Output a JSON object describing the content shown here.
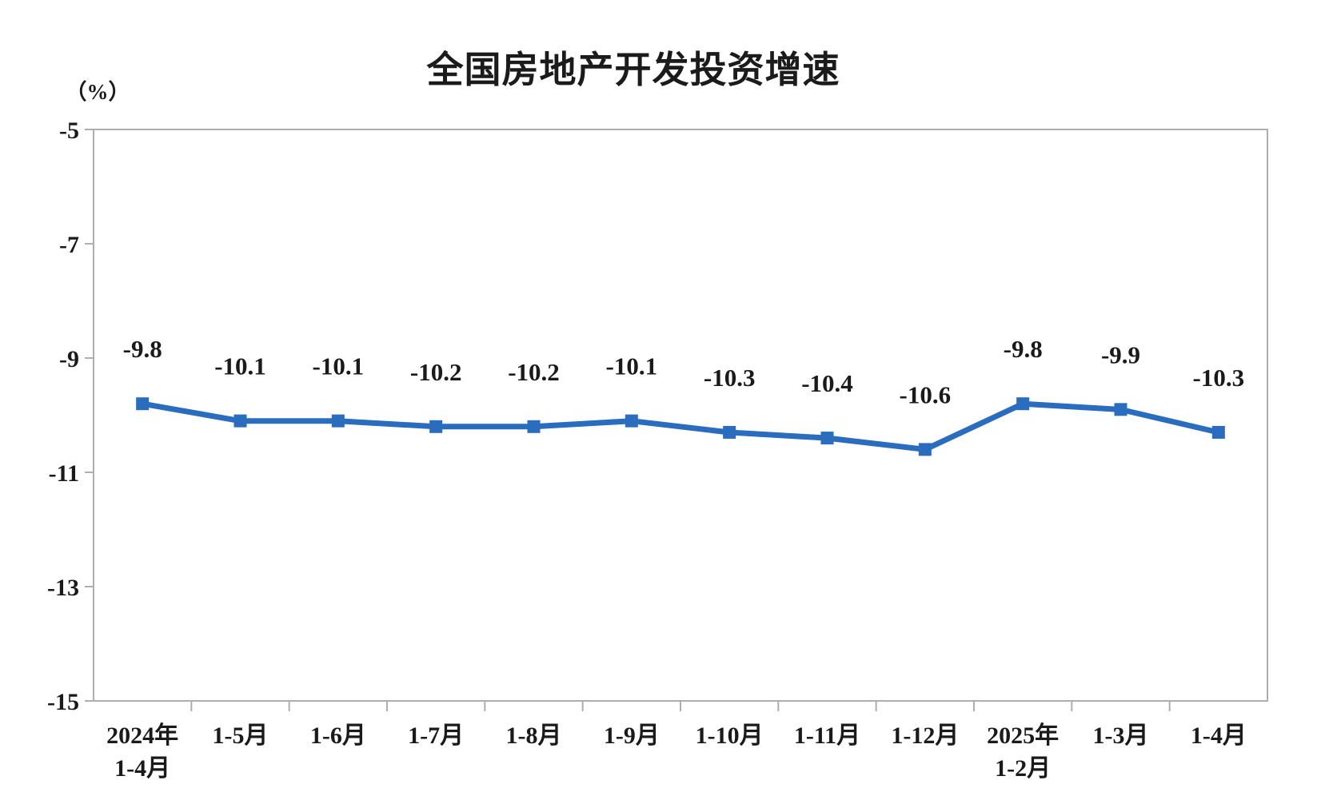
{
  "chart_data": {
    "type": "line",
    "title": "全国房地产开发投资增速",
    "ylabel": "（%）",
    "categories": [
      "2024年\n1-4月",
      "1-5月",
      "1-6月",
      "1-7月",
      "1-8月",
      "1-9月",
      "1-10月",
      "1-11月",
      "1-12月",
      "2025年\n1-2月",
      "1-3月",
      "1-4月"
    ],
    "values": [
      -9.8,
      -10.1,
      -10.1,
      -10.2,
      -10.2,
      -10.1,
      -10.3,
      -10.4,
      -10.6,
      -9.8,
      -9.9,
      -10.3
    ],
    "point_labels": [
      "-9.8",
      "-10.1",
      "-10.1",
      "-10.2",
      "-10.2",
      "-10.1",
      "-10.3",
      "-10.4",
      "-10.6",
      "-9.8",
      "-9.9",
      "-10.3"
    ],
    "y_ticks": [
      -5,
      -7,
      -9,
      -11,
      -13,
      -15
    ],
    "y_tick_labels": [
      "-5",
      "-7",
      "-9",
      "-11",
      "-13",
      "-15"
    ],
    "ylim": [
      -15,
      -5
    ],
    "grid": false,
    "legend": "none",
    "marker": "square",
    "colors": {
      "line": "#2a6cbe",
      "marker": "#2a6cbe",
      "axis": "#aeaeae",
      "text": "#1a1a1a"
    }
  }
}
